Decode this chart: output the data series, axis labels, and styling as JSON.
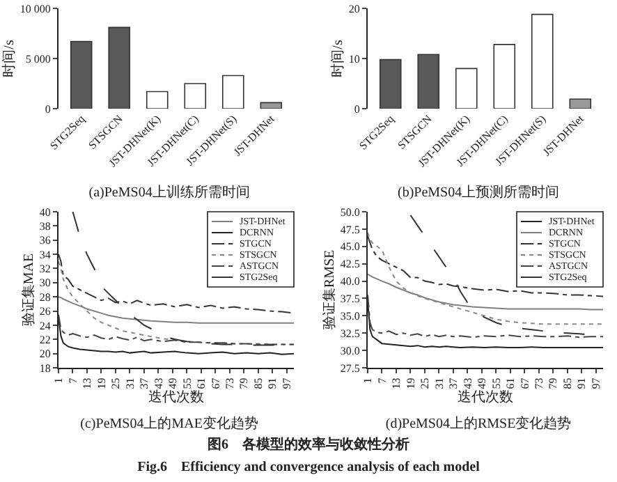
{
  "chart_data": [
    {
      "type": "bar",
      "title": "(a)PeMS04上训练所需时间",
      "ylabel": "时间/s",
      "categories": [
        "STG2Seq",
        "STSGCN",
        "JST-DHNet(K)",
        "JST-DHNet(C)",
        "JST-DHNet(S)",
        "JST-DHNet"
      ],
      "values": [
        6700,
        8100,
        1700,
        2500,
        3300,
        600
      ],
      "colors": [
        "#595959",
        "#595959",
        "#ffffff",
        "#ffffff",
        "#ffffff",
        "#9a9a9a"
      ],
      "ylim": [
        0,
        10000
      ],
      "yticks": [
        0,
        {
          "value": 5000,
          "label": "5 000"
        },
        {
          "value": 10000,
          "label": "10 000"
        }
      ],
      "grid": false
    },
    {
      "type": "bar",
      "title": "(b)PeMS04上预测所需时间",
      "ylabel": "时间/s",
      "categories": [
        "STG2Seq",
        "STSGCN",
        "JST-DHNet(K)",
        "JST-DHNet(C)",
        "JST-DHNet(S)",
        "JST-DHNet"
      ],
      "values": [
        9.8,
        10.8,
        8,
        12.8,
        18.8,
        1.9
      ],
      "colors": [
        "#595959",
        "#595959",
        "#ffffff",
        "#ffffff",
        "#ffffff",
        "#9a9a9a"
      ],
      "ylim": [
        0,
        20
      ],
      "yticks": [
        0,
        10,
        20
      ],
      "grid": false
    },
    {
      "type": "line",
      "title": "(c)PeMS04上的MAE变化趋势",
      "xlabel": "迭代次数",
      "ylabel": "验证集MAE",
      "x": [
        1,
        2,
        3,
        5,
        7,
        10,
        13,
        16,
        19,
        22,
        25,
        28,
        31,
        34,
        37,
        40,
        45,
        50,
        55,
        60,
        65,
        70,
        75,
        80,
        85,
        90,
        95,
        100
      ],
      "series": [
        {
          "name": "JST-DHNet",
          "color": "#808080",
          "line_style": "solid",
          "values": [
            28,
            27.9,
            27.7,
            27.4,
            27.1,
            26.7,
            26.3,
            26,
            25.7,
            25.4,
            25.2,
            25,
            24.9,
            24.8,
            24.7,
            24.6,
            24.5,
            24.4,
            24.4,
            24.3,
            24.3,
            24.3,
            24.3,
            24.3,
            24.3,
            24.3,
            24.3,
            24.3
          ]
        },
        {
          "name": "DCRNN",
          "color": "#222222",
          "line_style": "solid",
          "values": [
            25,
            22.5,
            21.5,
            21,
            20.8,
            20.6,
            20.5,
            20.4,
            20.3,
            20.3,
            20.2,
            20.3,
            20.1,
            20.2,
            20.3,
            20.1,
            20.2,
            20.3,
            20.1,
            20,
            20.1,
            20.2,
            20,
            20.1,
            20,
            20.1,
            19.9,
            20
          ]
        },
        {
          "name": "STGCN",
          "color": "#333333",
          "line_style": "dashdot",
          "values": [
            34,
            33,
            31,
            30.5,
            29.5,
            29,
            28.5,
            28,
            27.5,
            27.8,
            27.2,
            27.4,
            27,
            27.5,
            27.1,
            26.8,
            27,
            26.6,
            26.9,
            26.5,
            26.8,
            26.4,
            26.6,
            26.3,
            26.2,
            26,
            25.9,
            25.7
          ]
        },
        {
          "name": "STSGCN",
          "color": "#888888",
          "line_style": "dotted",
          "values": [
            33,
            32,
            30.5,
            29,
            28,
            27,
            26,
            25,
            24.4,
            24,
            23.6,
            23.2,
            23,
            22.8,
            22.6,
            22.4,
            22.1,
            21.9,
            21.7,
            21.6,
            21.5,
            21.5,
            21.4,
            21.4,
            21.4,
            21.3,
            21.3,
            21.3
          ]
        },
        {
          "name": "ASTGCN",
          "color": "#444444",
          "line_style": "dashdot",
          "values": [
            25.5,
            23.5,
            23,
            22.6,
            22.8,
            22.5,
            22.3,
            22.6,
            22.2,
            22,
            22.4,
            22.1,
            21.9,
            22.3,
            21.8,
            22,
            21.7,
            21.9,
            21.6,
            21.6,
            21.5,
            21.5,
            21.4,
            21.4,
            21.3,
            21.3,
            21.3,
            21.3
          ]
        },
        {
          "name": "STG2Seq",
          "color": "#333333",
          "line_style": "dashed",
          "values": [
            null,
            null,
            null,
            null,
            40,
            36.5,
            34,
            32,
            29.5,
            28.5,
            27.5,
            26.5,
            25.5,
            24.8,
            24,
            23.5,
            22.5,
            22,
            21.7,
            21.5,
            21.4,
            21.3,
            21.3,
            21.2,
            21.2,
            21.2,
            21.2,
            21.2
          ]
        }
      ],
      "xlim": [
        1,
        100
      ],
      "xticks": [
        1,
        7,
        13,
        19,
        25,
        31,
        37,
        43,
        49,
        55,
        61,
        67,
        73,
        79,
        85,
        91,
        97
      ],
      "ylim": [
        18,
        40
      ],
      "yticks": [
        18,
        20,
        22,
        24,
        26,
        28,
        30,
        32,
        34,
        36,
        38,
        40
      ],
      "grid": false,
      "legend": "top right"
    },
    {
      "type": "line",
      "title": "(d)PeMS04上的RMSE变化趋势",
      "xlabel": "迭代次数",
      "ylabel": "验证集RMSE",
      "x": [
        1,
        2,
        3,
        5,
        7,
        10,
        13,
        16,
        19,
        22,
        25,
        28,
        31,
        34,
        37,
        40,
        45,
        50,
        55,
        60,
        65,
        70,
        75,
        80,
        85,
        90,
        95,
        100
      ],
      "series": [
        {
          "name": "JST-DHNet",
          "color": "#222222",
          "line_style": "solid",
          "values": [
            37,
            33,
            32,
            31.5,
            31,
            30.9,
            30.8,
            30.7,
            30.6,
            30.7,
            30.5,
            30.6,
            30.5,
            30.6,
            30.5,
            30.4,
            30.5,
            30.4,
            30.5,
            30.4,
            30.4,
            30.5,
            30.4,
            30.4,
            30.4,
            30.4,
            30.4,
            30.4
          ]
        },
        {
          "name": "DCRNN",
          "color": "#808080",
          "line_style": "solid",
          "values": [
            41,
            40.8,
            40.6,
            40.3,
            40,
            39.6,
            39.1,
            38.7,
            38.3,
            38,
            37.6,
            37.3,
            37,
            36.8,
            36.6,
            36.5,
            36.3,
            36.2,
            36.1,
            36,
            36,
            36,
            36,
            36,
            36,
            36,
            35.9,
            35.9
          ]
        },
        {
          "name": "STGCN",
          "color": "#333333",
          "line_style": "dashdot",
          "values": [
            46.5,
            45.5,
            44.5,
            43.5,
            43,
            42.5,
            42,
            41.5,
            40.5,
            40.5,
            40,
            39.8,
            39.5,
            39.6,
            39.3,
            39.2,
            38.9,
            38.7,
            38.8,
            38.5,
            38.6,
            38.3,
            38.3,
            38.2,
            38,
            38,
            37.9,
            37.8
          ]
        },
        {
          "name": "STSGCN",
          "color": "#888888",
          "line_style": "dotted",
          "values": [
            47,
            46,
            45.5,
            45,
            44.5,
            42,
            40,
            39,
            38.3,
            37.9,
            37.5,
            37.2,
            36.9,
            36.6,
            36.3,
            36,
            35.5,
            35,
            34.5,
            34.2,
            34,
            33.9,
            33.8,
            33.8,
            33.8,
            33.8,
            33.8,
            33.8
          ]
        },
        {
          "name": "ASTGCN",
          "color": "#444444",
          "line_style": "dashdot",
          "values": [
            38,
            34,
            33,
            32.6,
            32.5,
            32.8,
            32.3,
            32.5,
            32.2,
            32.4,
            32,
            32.3,
            32,
            32.2,
            32,
            32.1,
            31.9,
            32.1,
            32,
            32.2,
            32,
            32.1,
            32,
            32,
            32.1,
            31.9,
            32,
            32
          ]
        },
        {
          "name": "STG2Seq",
          "color": "#333333",
          "line_style": "dashed",
          "values": [
            null,
            null,
            null,
            null,
            null,
            null,
            null,
            null,
            49.5,
            48,
            46.5,
            45,
            43.5,
            42,
            40.5,
            38.5,
            35.8,
            34.8,
            34,
            33.5,
            33.2,
            33,
            32.8,
            32.6,
            32.5,
            32.4,
            32.2,
            32.1
          ]
        }
      ],
      "xlim": [
        1,
        100
      ],
      "xticks": [
        1,
        7,
        13,
        19,
        25,
        31,
        37,
        43,
        49,
        55,
        61,
        67,
        73,
        79,
        85,
        91,
        97
      ],
      "ylim": [
        27.5,
        50
      ],
      "yticks": [
        {
          "value": 27.5,
          "label": "27.5"
        },
        {
          "value": 30,
          "label": "30.0"
        },
        {
          "value": 32.5,
          "label": "32.5"
        },
        {
          "value": 35,
          "label": "35.0"
        },
        {
          "value": 37.5,
          "label": "37.5"
        },
        {
          "value": 40,
          "label": "40.0"
        },
        {
          "value": 42.5,
          "label": "42.5"
        },
        {
          "value": 45,
          "label": "45.0"
        },
        {
          "value": 47.5,
          "label": "47.5"
        },
        {
          "value": 50,
          "label": "50.0"
        }
      ],
      "grid": false,
      "legend": "top right",
      "annotations": [
        "图6　各模型的效率与收敛性分析",
        "Fig.6　Efficiency and convergence analysis of each model"
      ]
    }
  ]
}
